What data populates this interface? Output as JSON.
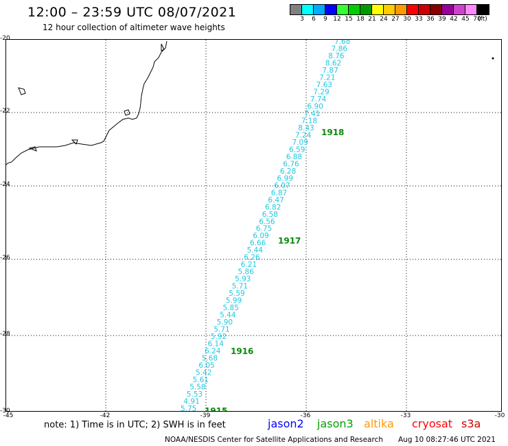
{
  "header": {
    "title": "12:00 – 23:59 UTC 08/07/2021",
    "subtitle": "12 hour collection of altimeter wave heights"
  },
  "colorbar": {
    "colors": [
      "#808080",
      "#00ffff",
      "#00aaff",
      "#0000ff",
      "#33ff33",
      "#00cc00",
      "#009900",
      "#ffff00",
      "#ffcc00",
      "#ff9900",
      "#ff0000",
      "#cc0000",
      "#880000",
      "#990099",
      "#cc44cc",
      "#ff88ff",
      "#000000"
    ],
    "labels": [
      "3",
      "6",
      "9",
      "12",
      "15",
      "18",
      "21",
      "24",
      "27",
      "30",
      "33",
      "36",
      "39",
      "42",
      "45",
      "70",
      "(ft)"
    ]
  },
  "map": {
    "lat_labels": [
      "-20",
      "-22",
      "-24",
      "-26",
      "-28",
      "-30"
    ],
    "lon_labels": [
      "-45",
      "-42",
      "-39",
      "-36",
      "-33",
      "-30"
    ],
    "swh_values": [
      "7.68",
      "7.86",
      "8.76",
      "8.62",
      "7.87",
      "7.21",
      "7.63",
      "7.29",
      "7.74",
      "6.90",
      "7.41",
      "7.18",
      "8.43",
      "7.24",
      "7.09",
      "6.59",
      "6.88",
      "6.76",
      "6.28",
      "6.99",
      "6.07",
      "6.87",
      "6.47",
      "6.82",
      "6.58",
      "6.56",
      "6.75",
      "6.09",
      "6.66",
      "5.44",
      "6.26",
      "6.21",
      "5.86",
      "5.93",
      "5.71",
      "5.59",
      "5.99",
      "5.85",
      "5.44",
      "5.90",
      "5.71",
      "5.92",
      "6.14",
      "6.24",
      "5.68",
      "6.05",
      "5.42",
      "5.61",
      "5.58",
      "5.53",
      "4.91",
      "5.75"
    ],
    "orbits": [
      "1918",
      "1917",
      "1916",
      "1915"
    ]
  },
  "footer": {
    "note": "note: 1) Time is in UTC; 2) SWH is in feet",
    "satellites": [
      {
        "name": "jason2",
        "color": "#0000ff"
      },
      {
        "name": "jason3",
        "color": "#00a000"
      },
      {
        "name": "altika",
        "color": "#ff9900"
      },
      {
        "name": "cryosat",
        "color": "#ff0000"
      },
      {
        "name": "s3a",
        "color": "#cc0000"
      }
    ],
    "credit": "NOAA/NESDIS Center for Satellite Applications and Research",
    "timestamp": "Aug 10 08:27:46 UTC 2021"
  }
}
